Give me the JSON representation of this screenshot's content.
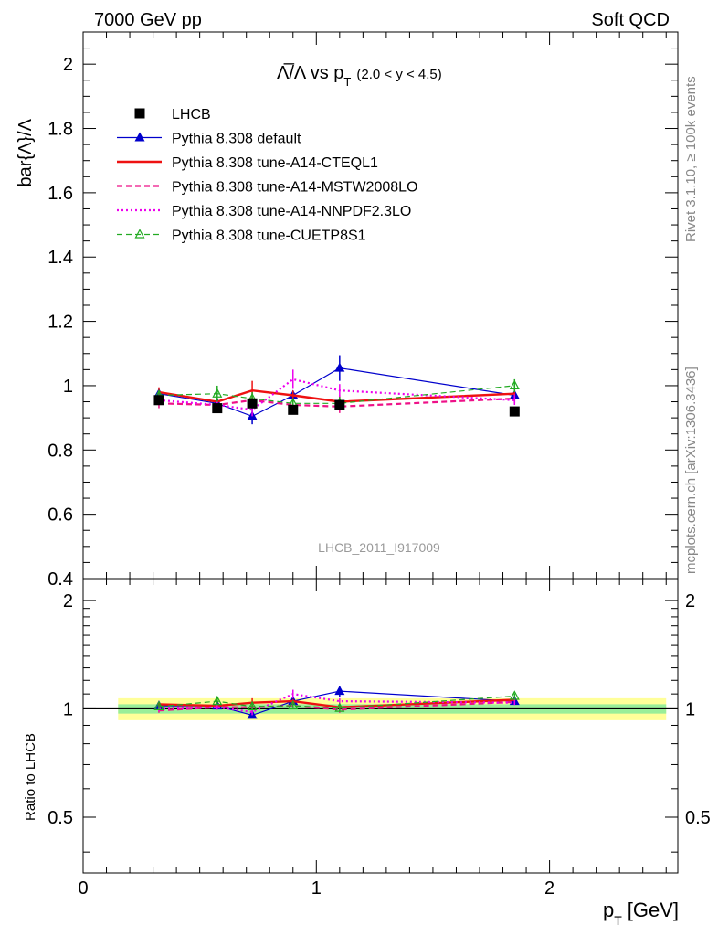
{
  "header": {
    "left": "7000 GeV pp",
    "right": "Soft QCD"
  },
  "side": {
    "rivet": "Rivet 3.1.10, ≥ 100k events",
    "mcplots": "mcplots.cern.ch [arXiv:1306.3436]"
  },
  "watermark": "LHCB_2011_I917009",
  "chart_data": [
    {
      "type": "line",
      "panel": "main",
      "title_main": "Λ̅/Λ vs p",
      "title_sub": "T",
      "title_tail": "(2.0 < y < 4.5)",
      "ylabel": "bar{Λ}/Λ",
      "xlim": [
        0,
        2.55
      ],
      "ylim": [
        0.4,
        2.1
      ],
      "y_ticks": [
        0.4,
        0.6,
        0.8,
        1,
        1.2,
        1.4,
        1.6,
        1.8,
        2
      ],
      "y_tick_labels": [
        "0.4",
        "0.6",
        "0.8",
        "1",
        "1.2",
        "1.4",
        "1.6",
        "1.8",
        "2"
      ],
      "x": [
        0.325,
        0.575,
        0.725,
        0.9,
        1.1,
        1.85
      ],
      "series": [
        {
          "name": "LHCB",
          "style": "data",
          "color": "#000000",
          "marker": "square",
          "values": [
            0.955,
            0.93,
            0.945,
            0.925,
            0.94,
            0.92
          ],
          "errors": [
            0.01,
            0.01,
            0.01,
            0.01,
            0.01,
            0.01
          ]
        },
        {
          "name": "Pythia 8.308 default",
          "style": "solid-thin",
          "color": "#0000cc",
          "marker": "triangle",
          "values": [
            0.975,
            0.945,
            0.905,
            0.97,
            1.055,
            0.97
          ],
          "errors": [
            0.015,
            0.015,
            0.025,
            0.015,
            0.04,
            0.015
          ]
        },
        {
          "name": "Pythia 8.308 tune-A14-CTEQL1",
          "style": "solid-thick",
          "color": "#ee1111",
          "marker": "none",
          "values": [
            0.98,
            0.95,
            0.985,
            0.97,
            0.95,
            0.975
          ],
          "errors": [
            0.015,
            0.015,
            0.03,
            0.015,
            0.02,
            0.015
          ]
        },
        {
          "name": "Pythia 8.308 tune-A14-MSTW2008LO",
          "style": "dashed",
          "color": "#ee1188",
          "marker": "none",
          "values": [
            0.945,
            0.94,
            0.955,
            0.94,
            0.935,
            0.96
          ],
          "errors": [
            0.015,
            0.015,
            0.02,
            0.015,
            0.02,
            0.015
          ]
        },
        {
          "name": "Pythia 8.308 tune-A14-NNPDF2.3LO",
          "style": "dotted",
          "color": "#ee00ee",
          "marker": "none",
          "values": [
            0.955,
            0.94,
            0.925,
            1.02,
            0.985,
            0.955
          ],
          "errors": [
            0.015,
            0.015,
            0.02,
            0.03,
            0.02,
            0.015
          ]
        },
        {
          "name": "Pythia 8.308 tune-CUETP8S1",
          "style": "dashed-green",
          "color": "#22aa22",
          "marker": "open-triangle",
          "values": [
            0.97,
            0.975,
            0.96,
            0.945,
            0.945,
            1.0
          ],
          "errors": [
            0.015,
            0.025,
            0.02,
            0.015,
            0.02,
            0.02
          ]
        }
      ]
    },
    {
      "type": "line",
      "panel": "ratio",
      "ylabel": "Ratio to LHCB",
      "xlabel_main": "p",
      "xlabel_sub": "T",
      "xlabel_tail": "[GeV]",
      "xlim": [
        0,
        2.55
      ],
      "ylim": [
        0.35,
        2.3
      ],
      "x_ticks": [
        0,
        1,
        2
      ],
      "x_tick_labels": [
        "0",
        "1",
        "2"
      ],
      "y_ticks": [
        0.5,
        1,
        2
      ],
      "y_tick_labels": [
        "0.5",
        "1",
        "2"
      ],
      "band_x": [
        0.15,
        2.5
      ],
      "band_yellow": [
        0.93,
        1.07
      ],
      "band_green": [
        0.97,
        1.03
      ],
      "x": [
        0.325,
        0.575,
        0.725,
        0.9,
        1.1,
        1.85
      ],
      "series": [
        {
          "name": "Pythia 8.308 default",
          "style": "solid-thin",
          "color": "#0000cc",
          "marker": "triangle",
          "values": [
            1.02,
            1.02,
            0.96,
            1.05,
            1.12,
            1.05
          ],
          "errors": [
            0.015,
            0.015,
            0.02,
            0.015,
            0.04,
            0.015
          ]
        },
        {
          "name": "Pythia 8.308 tune-A14-CTEQL1",
          "style": "solid-thick",
          "color": "#ee1111",
          "marker": "none",
          "values": [
            1.03,
            1.02,
            1.04,
            1.05,
            1.01,
            1.06
          ],
          "errors": [
            0.015,
            0.015,
            0.03,
            0.015,
            0.02,
            0.015
          ]
        },
        {
          "name": "Pythia 8.308 tune-A14-MSTW2008LO",
          "style": "dashed",
          "color": "#ee1188",
          "marker": "none",
          "values": [
            0.99,
            1.01,
            1.01,
            1.02,
            0.995,
            1.045
          ],
          "errors": [
            0.015,
            0.015,
            0.02,
            0.015,
            0.02,
            0.015
          ]
        },
        {
          "name": "Pythia 8.308 tune-A14-NNPDF2.3LO",
          "style": "dotted",
          "color": "#ee00ee",
          "marker": "none",
          "values": [
            1.0,
            1.01,
            0.98,
            1.1,
            1.05,
            1.04
          ],
          "errors": [
            0.015,
            0.015,
            0.02,
            0.03,
            0.02,
            0.015
          ]
        },
        {
          "name": "Pythia 8.308 tune-CUETP8S1",
          "style": "dashed-green",
          "color": "#22aa22",
          "marker": "open-triangle",
          "values": [
            1.015,
            1.05,
            1.015,
            1.02,
            1.005,
            1.085
          ],
          "errors": [
            0.015,
            0.025,
            0.02,
            0.015,
            0.02,
            0.02
          ]
        }
      ]
    }
  ]
}
